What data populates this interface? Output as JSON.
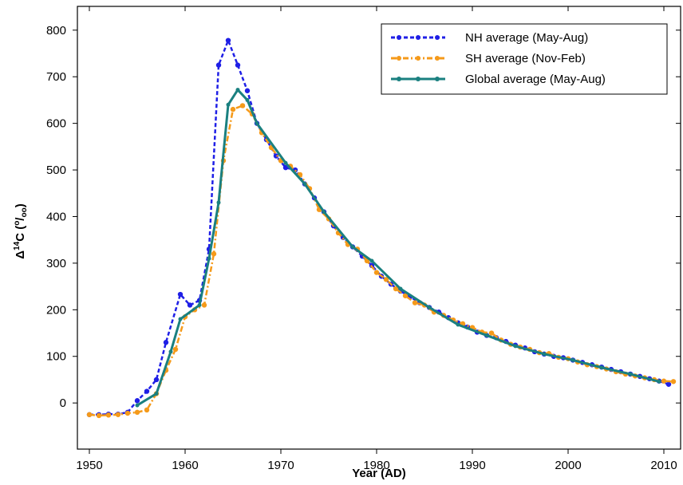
{
  "chart_data": {
    "type": "line",
    "xlabel": "Year (AD)",
    "ylabel": [
      "Δ",
      "14",
      "C (",
      "o",
      "/",
      "oo",
      ")"
    ],
    "xlim": [
      1948.75,
      2011.75
    ],
    "xticks": [
      1950,
      1960,
      1970,
      1980,
      1990,
      2000,
      2010
    ],
    "ylim": [
      -99,
      851
    ],
    "yticks": [
      0,
      100,
      200,
      300,
      400,
      500,
      600,
      700,
      800
    ],
    "legend": "upper right",
    "series": [
      {
        "name": "NH average (May-Aug)",
        "color": "#1f1fe6",
        "style": "dashed",
        "x": [
          1950,
          1951,
          1952,
          1953,
          1954,
          1955,
          1956,
          1957,
          1958,
          1959.5,
          1960.5,
          1961.5,
          1962.5,
          1963.5,
          1964.5,
          1965.5,
          1966.5,
          1967.5,
          1968.5,
          1969.5,
          1970.5,
          1971.5,
          1972.5,
          1973.5,
          1974.5,
          1975.5,
          1976.5,
          1977.5,
          1978.5,
          1979.5,
          1980.5,
          1981.5,
          1982.5,
          1983.5,
          1984.5,
          1985.5,
          1986.5,
          1987.5,
          1988.5,
          1989.5,
          1990.5,
          1991.5,
          1992.5,
          1993.5,
          1994.5,
          1995.5,
          1996.5,
          1997.5,
          1998.5,
          1999.5,
          2000.5,
          2001.5,
          2002.5,
          2003.5,
          2004.5,
          2005.5,
          2006.5,
          2007.5,
          2008.5,
          2009.5,
          2010.5
        ],
        "values": [
          -25,
          -25,
          -24,
          -24,
          -20,
          5,
          25,
          50,
          130,
          233,
          210,
          220,
          330,
          725,
          778,
          725,
          670,
          600,
          565,
          530,
          505,
          500,
          470,
          440,
          410,
          380,
          355,
          335,
          315,
          295,
          272,
          255,
          240,
          228,
          215,
          205,
          195,
          183,
          172,
          163,
          152,
          145,
          140,
          132,
          124,
          118,
          110,
          105,
          100,
          97,
          92,
          87,
          82,
          77,
          72,
          67,
          62,
          57,
          52,
          47,
          40
        ]
      },
      {
        "name": "SH average (Nov-Feb)",
        "color": "#f59a1a",
        "style": "dashdot",
        "x": [
          1950,
          1951,
          1952,
          1953,
          1954,
          1955,
          1956,
          1957,
          1958,
          1959,
          1960,
          1961,
          1962,
          1963,
          1964,
          1965,
          1966,
          1967,
          1968,
          1969,
          1970,
          1971,
          1972,
          1973,
          1974,
          1975,
          1976,
          1977,
          1978,
          1979,
          1980,
          1981,
          1982,
          1983,
          1984,
          1985,
          1986,
          1987,
          1988,
          1989,
          1990,
          1991,
          1992,
          1993,
          1994,
          1995,
          1996,
          1997,
          1998,
          1999,
          2000,
          2001,
          2002,
          2003,
          2004,
          2005,
          2006,
          2007,
          2008,
          2009,
          2010,
          2011
        ],
        "values": [
          -25,
          -27,
          -26,
          -25,
          -22,
          -20,
          -15,
          20,
          70,
          115,
          185,
          200,
          210,
          320,
          520,
          630,
          638,
          620,
          580,
          548,
          520,
          508,
          490,
          460,
          415,
          395,
          365,
          340,
          330,
          305,
          280,
          265,
          245,
          230,
          215,
          210,
          195,
          188,
          178,
          170,
          162,
          152,
          150,
          135,
          126,
          120,
          115,
          108,
          106,
          98,
          95,
          88,
          82,
          78,
          73,
          67,
          62,
          58,
          54,
          50,
          47,
          46
        ]
      },
      {
        "name": "Global average (May-Aug)",
        "color": "#1a8080",
        "style": "solid",
        "x": [
          1955,
          1957,
          1958.5,
          1959.5,
          1961.5,
          1962.5,
          1963.5,
          1964.5,
          1965.5,
          1966.5,
          1967.5,
          1970.5,
          1972.5,
          1974.5,
          1977.5,
          1979.5,
          1982.5,
          1985.5,
          1988.5,
          1991.5,
          1994.5,
          1997.5,
          2000.5,
          2003.5,
          2006.5,
          2009.5
        ],
        "values": [
          -5,
          20,
          110,
          180,
          210,
          310,
          430,
          640,
          672,
          650,
          600,
          515,
          470,
          410,
          335,
          305,
          245,
          205,
          168,
          145,
          122,
          105,
          92,
          76,
          62,
          46
        ]
      }
    ]
  }
}
